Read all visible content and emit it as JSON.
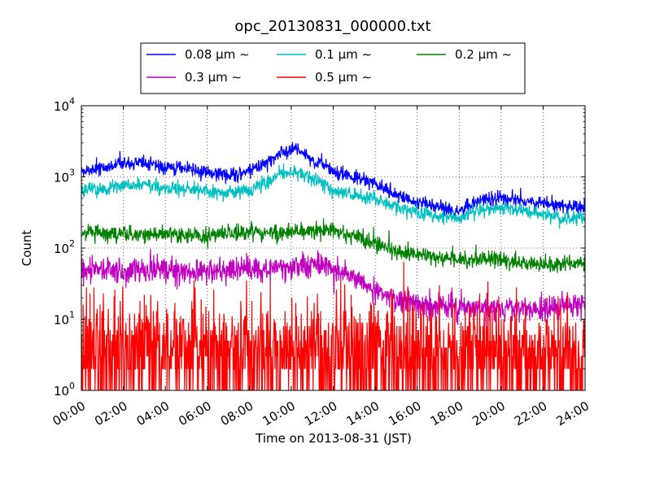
{
  "chart_data": {
    "type": "line",
    "title": "opc_20130831_000000.txt",
    "xlabel": "Time on 2013-08-31 (JST)",
    "ylabel": "Count",
    "y_scale": "log",
    "ylim": [
      1,
      10000
    ],
    "xlim": [
      "00:00",
      "24:00"
    ],
    "x_tick_labels": [
      "00:00",
      "02:00",
      "04:00",
      "06:00",
      "08:00",
      "10:00",
      "12:00",
      "14:00",
      "16:00",
      "18:00",
      "20:00",
      "22:00",
      "24:00"
    ],
    "y_tick_labels": [
      {
        "value": 1,
        "base": "10",
        "exp": "0"
      },
      {
        "value": 10,
        "base": "10",
        "exp": "1"
      },
      {
        "value": 100,
        "base": "10",
        "exp": "2"
      },
      {
        "value": 1000,
        "base": "10",
        "exp": "3"
      },
      {
        "value": 10000,
        "base": "10",
        "exp": "4"
      }
    ],
    "grid": true,
    "legend_position": "top-center",
    "x_hours": [
      0,
      1,
      2,
      3,
      4,
      5,
      6,
      7,
      8,
      9,
      9.5,
      10,
      10.5,
      11,
      11.5,
      12,
      13,
      14,
      15,
      16,
      17,
      18,
      19,
      20,
      21,
      22,
      23,
      24
    ],
    "series": [
      {
        "name": "0.08 μm ∼",
        "color": "#0000ff",
        "noise": 0.05,
        "values": [
          1200,
          1400,
          1500,
          1600,
          1350,
          1300,
          1150,
          1050,
          1200,
          1700,
          2200,
          2400,
          2200,
          1800,
          1500,
          1200,
          1000,
          800,
          550,
          450,
          380,
          330,
          480,
          500,
          470,
          430,
          380,
          380
        ]
      },
      {
        "name": "0.1 μm ∼",
        "color": "#00bfbf",
        "noise": 0.05,
        "values": [
          650,
          700,
          750,
          780,
          700,
          680,
          630,
          600,
          650,
          900,
          1100,
          1200,
          1100,
          950,
          800,
          650,
          550,
          500,
          380,
          320,
          280,
          260,
          340,
          360,
          330,
          300,
          260,
          260
        ]
      },
      {
        "name": "0.2 μm ∼",
        "color": "#008000",
        "noise": 0.06,
        "values": [
          165,
          160,
          160,
          155,
          160,
          150,
          150,
          160,
          165,
          165,
          160,
          170,
          175,
          185,
          185,
          170,
          150,
          115,
          90,
          80,
          75,
          72,
          70,
          70,
          60,
          60,
          60,
          62
        ]
      },
      {
        "name": "0.3 μm ∼",
        "color": "#bf00bf",
        "noise": 0.09,
        "values": [
          50,
          48,
          48,
          50,
          50,
          48,
          47,
          48,
          50,
          50,
          52,
          52,
          55,
          58,
          55,
          52,
          40,
          25,
          19,
          17,
          15,
          15,
          14,
          14,
          14,
          14,
          15,
          15
        ]
      },
      {
        "name": "0.5 μm ∼",
        "color": "#ff0000",
        "noise": 0.35,
        "values": [
          5,
          5,
          4.5,
          4.5,
          4.5,
          4.2,
          4.2,
          4.2,
          4.2,
          4.2,
          4.2,
          4.2,
          4.2,
          4.2,
          4,
          4,
          3.8,
          3.8,
          3.6,
          3.6,
          3.6,
          3.6,
          3.6,
          3.6,
          3.6,
          3.6,
          3.6,
          3.6
        ]
      }
    ]
  }
}
